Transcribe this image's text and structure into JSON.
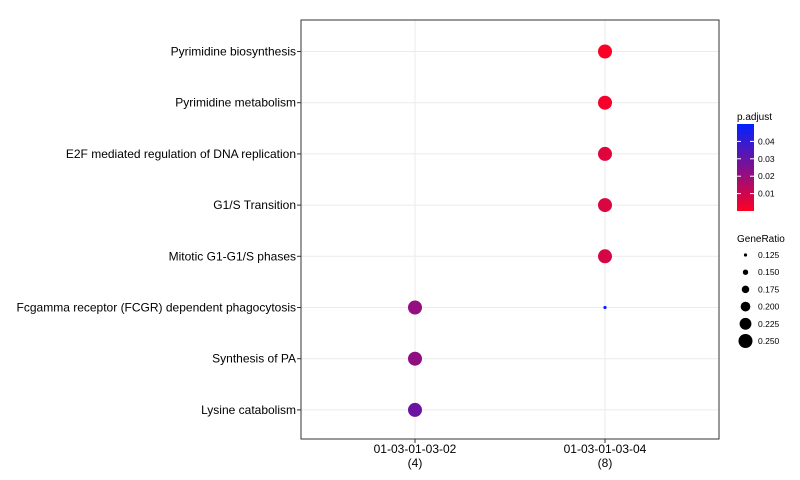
{
  "chart_data": {
    "type": "scatter",
    "subtype": "dotplot",
    "title": "",
    "xlabel": "",
    "ylabel": "",
    "grid": true,
    "categories_x": [
      {
        "label": "01-03-01-03-02",
        "count": "(4)"
      },
      {
        "label": "01-03-01-03-04",
        "count": "(8)"
      }
    ],
    "categories_y": [
      "Pyrimidine biosynthesis",
      "Pyrimidine metabolism",
      "E2F mediated regulation of DNA replication",
      "G1/S Transition",
      "Mitotic G1-G1/S phases",
      "Fcgamma receptor (FCGR) dependent phagocytosis",
      "Synthesis of PA",
      "Lysine catabolism"
    ],
    "points": [
      {
        "x": "01-03-01-03-04",
        "y": "Pyrimidine biosynthesis",
        "gene_ratio": 0.25,
        "p_adjust": 0.001
      },
      {
        "x": "01-03-01-03-04",
        "y": "Pyrimidine metabolism",
        "gene_ratio": 0.25,
        "p_adjust": 0.002
      },
      {
        "x": "01-03-01-03-04",
        "y": "E2F mediated regulation of DNA replication",
        "gene_ratio": 0.25,
        "p_adjust": 0.006
      },
      {
        "x": "01-03-01-03-04",
        "y": "G1/S Transition",
        "gene_ratio": 0.25,
        "p_adjust": 0.007
      },
      {
        "x": "01-03-01-03-04",
        "y": "Mitotic G1-G1/S phases",
        "gene_ratio": 0.25,
        "p_adjust": 0.008
      },
      {
        "x": "01-03-01-03-04",
        "y": "Fcgamma receptor (FCGR) dependent phagocytosis",
        "gene_ratio": 0.125,
        "p_adjust": 0.048
      },
      {
        "x": "01-03-01-03-02",
        "y": "Fcgamma receptor (FCGR) dependent phagocytosis",
        "gene_ratio": 0.25,
        "p_adjust": 0.021
      },
      {
        "x": "01-03-01-03-02",
        "y": "Synthesis of PA",
        "gene_ratio": 0.25,
        "p_adjust": 0.022
      },
      {
        "x": "01-03-01-03-02",
        "y": "Lysine catabolism",
        "gene_ratio": 0.25,
        "p_adjust": 0.029
      }
    ],
    "color_legend": {
      "title": "p.adjust",
      "range": [
        0.0,
        0.05
      ],
      "ticks": [
        "0.04",
        "0.03",
        "0.02",
        "0.01"
      ],
      "tick_values": [
        0.04,
        0.03,
        0.02,
        0.01
      ],
      "low_color": "#ff0022",
      "high_color": "#0022ff"
    },
    "size_legend": {
      "title": "GeneRatio",
      "range": [
        0.125,
        0.25
      ],
      "ticks": [
        "0.125",
        "0.150",
        "0.175",
        "0.200",
        "0.225",
        "0.250"
      ],
      "tick_values": [
        0.125,
        0.15,
        0.175,
        0.2,
        0.225,
        0.25
      ]
    },
    "legend_position": "right"
  }
}
